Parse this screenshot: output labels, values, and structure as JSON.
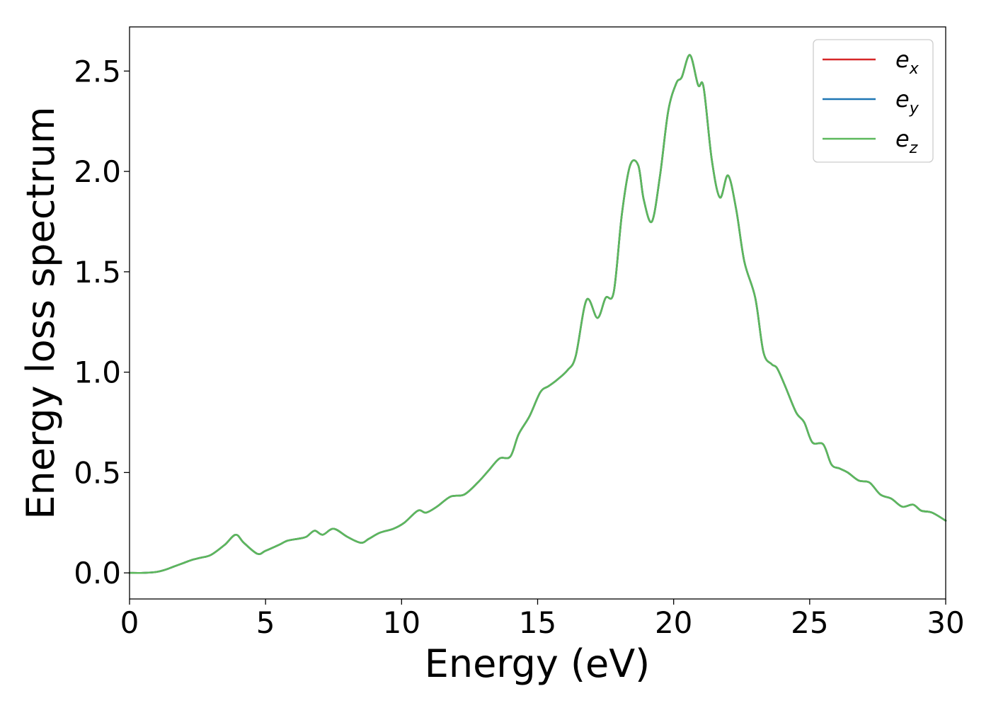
{
  "chart_data": {
    "type": "line",
    "title": "",
    "xlabel": "Energy (eV)",
    "ylabel": "Energy loss spectrum",
    "xlim": [
      0,
      30
    ],
    "ylim": [
      -0.13,
      2.72
    ],
    "xticks": [
      0,
      5,
      10,
      15,
      20,
      25,
      30
    ],
    "xtick_labels": [
      "0",
      "5",
      "10",
      "15",
      "20",
      "25",
      "30"
    ],
    "yticks": [
      0.0,
      0.5,
      1.0,
      1.5,
      2.0,
      2.5
    ],
    "ytick_labels": [
      "0.0",
      "0.5",
      "1.0",
      "1.5",
      "2.0",
      "2.5"
    ],
    "grid": false,
    "legend_position": "top-right",
    "legend": [
      {
        "base": "e",
        "sub": "x",
        "color": "#d62728"
      },
      {
        "base": "e",
        "sub": "y",
        "color": "#1f77b4"
      },
      {
        "base": "e",
        "sub": "z",
        "color": "#5cb85c"
      }
    ],
    "x": [
      0,
      0.5,
      1.0,
      1.3,
      1.6,
      2.0,
      2.3,
      2.6,
      3.0,
      3.5,
      3.9,
      4.2,
      4.7,
      5.0,
      5.5,
      5.8,
      6.2,
      6.5,
      6.8,
      7.1,
      7.5,
      8.0,
      8.5,
      8.8,
      9.2,
      9.7,
      10.1,
      10.6,
      10.9,
      11.3,
      11.8,
      12.3,
      12.8,
      13.2,
      13.6,
      14.0,
      14.3,
      14.7,
      15.1,
      15.4,
      15.7,
      16.1,
      16.4,
      16.8,
      17.2,
      17.5,
      17.8,
      18.1,
      18.4,
      18.7,
      18.9,
      19.2,
      19.5,
      19.8,
      20.1,
      20.3,
      20.6,
      20.9,
      21.1,
      21.4,
      21.7,
      22.0,
      22.3,
      22.6,
      23.0,
      23.3,
      23.6,
      23.8,
      24.1,
      24.5,
      24.8,
      25.1,
      25.5,
      25.8,
      26.1,
      26.4,
      26.8,
      27.2,
      27.6,
      28.0,
      28.4,
      28.8,
      29.1,
      29.5,
      30.0
    ],
    "series": [
      {
        "name": "e_x",
        "color": "#d62728",
        "values": [
          0.0,
          0.0,
          0.005,
          0.015,
          0.03,
          0.05,
          0.065,
          0.075,
          0.09,
          0.14,
          0.19,
          0.15,
          0.095,
          0.11,
          0.14,
          0.16,
          0.17,
          0.18,
          0.21,
          0.19,
          0.22,
          0.18,
          0.15,
          0.17,
          0.2,
          0.22,
          0.25,
          0.31,
          0.3,
          0.33,
          0.38,
          0.39,
          0.45,
          0.51,
          0.57,
          0.58,
          0.69,
          0.78,
          0.9,
          0.93,
          0.96,
          1.01,
          1.08,
          1.36,
          1.27,
          1.37,
          1.4,
          1.79,
          2.03,
          2.03,
          1.86,
          1.75,
          1.98,
          2.3,
          2.44,
          2.47,
          2.58,
          2.43,
          2.42,
          2.06,
          1.87,
          1.98,
          1.81,
          1.55,
          1.37,
          1.1,
          1.04,
          1.02,
          0.93,
          0.8,
          0.75,
          0.65,
          0.64,
          0.54,
          0.52,
          0.5,
          0.46,
          0.45,
          0.39,
          0.37,
          0.33,
          0.34,
          0.31,
          0.3,
          0.26
        ]
      },
      {
        "name": "e_y",
        "color": "#1f77b4",
        "values": [
          0.0,
          0.0,
          0.005,
          0.015,
          0.03,
          0.05,
          0.065,
          0.075,
          0.09,
          0.14,
          0.19,
          0.15,
          0.095,
          0.11,
          0.14,
          0.16,
          0.17,
          0.18,
          0.21,
          0.19,
          0.22,
          0.18,
          0.15,
          0.17,
          0.2,
          0.22,
          0.25,
          0.31,
          0.3,
          0.33,
          0.38,
          0.39,
          0.45,
          0.51,
          0.57,
          0.58,
          0.69,
          0.78,
          0.9,
          0.93,
          0.96,
          1.01,
          1.08,
          1.36,
          1.27,
          1.37,
          1.4,
          1.79,
          2.03,
          2.03,
          1.86,
          1.75,
          1.98,
          2.3,
          2.44,
          2.47,
          2.58,
          2.43,
          2.42,
          2.06,
          1.87,
          1.98,
          1.81,
          1.55,
          1.37,
          1.1,
          1.04,
          1.02,
          0.93,
          0.8,
          0.75,
          0.65,
          0.64,
          0.54,
          0.52,
          0.5,
          0.46,
          0.45,
          0.39,
          0.37,
          0.33,
          0.34,
          0.31,
          0.3,
          0.26
        ]
      },
      {
        "name": "e_z",
        "color": "#5cb85c",
        "values": [
          0.0,
          0.0,
          0.005,
          0.015,
          0.03,
          0.05,
          0.065,
          0.075,
          0.09,
          0.14,
          0.19,
          0.15,
          0.095,
          0.11,
          0.14,
          0.16,
          0.17,
          0.18,
          0.21,
          0.19,
          0.22,
          0.18,
          0.15,
          0.17,
          0.2,
          0.22,
          0.25,
          0.31,
          0.3,
          0.33,
          0.38,
          0.39,
          0.45,
          0.51,
          0.57,
          0.58,
          0.69,
          0.78,
          0.9,
          0.93,
          0.96,
          1.01,
          1.08,
          1.36,
          1.27,
          1.37,
          1.4,
          1.79,
          2.03,
          2.03,
          1.86,
          1.75,
          1.98,
          2.3,
          2.44,
          2.47,
          2.58,
          2.43,
          2.42,
          2.06,
          1.87,
          1.98,
          1.81,
          1.55,
          1.37,
          1.1,
          1.04,
          1.02,
          0.93,
          0.8,
          0.75,
          0.65,
          0.64,
          0.54,
          0.52,
          0.5,
          0.46,
          0.45,
          0.39,
          0.37,
          0.33,
          0.34,
          0.31,
          0.3,
          0.26
        ]
      }
    ]
  }
}
